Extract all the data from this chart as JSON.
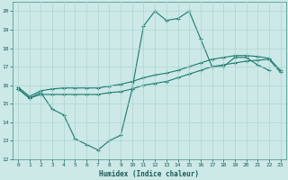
{
  "xlabel": "Humidex (Indice chaleur)",
  "bg_color": "#cce9e7",
  "grid_color": "#aed4d1",
  "line_color": "#1a7a6e",
  "xlim": [
    -0.5,
    23.5
  ],
  "ylim": [
    12,
    20.5
  ],
  "yticks": [
    12,
    13,
    14,
    15,
    16,
    17,
    18,
    19,
    20
  ],
  "xticks": [
    0,
    1,
    2,
    3,
    4,
    5,
    6,
    7,
    8,
    9,
    10,
    11,
    12,
    13,
    14,
    15,
    16,
    17,
    18,
    19,
    20,
    21,
    22,
    23
  ],
  "line1_x": [
    0,
    1,
    2,
    3,
    4,
    5,
    6,
    7,
    8,
    9,
    10,
    11,
    12,
    13,
    14,
    15,
    16,
    17,
    18,
    19,
    20,
    21,
    22
  ],
  "line1_y": [
    15.8,
    15.3,
    15.6,
    14.7,
    14.4,
    13.1,
    12.8,
    12.5,
    13.0,
    13.3,
    15.8,
    19.2,
    20.0,
    19.5,
    19.6,
    20.0,
    18.5,
    17.0,
    17.0,
    17.5,
    17.5,
    17.1,
    16.8
  ],
  "line2_x": [
    0,
    1,
    2,
    3,
    4,
    5,
    6,
    7,
    8,
    9,
    10,
    11,
    12,
    13,
    14,
    15,
    16,
    17,
    18,
    19,
    20,
    21,
    22,
    23
  ],
  "line2_y": [
    15.8,
    15.3,
    15.5,
    15.5,
    15.5,
    15.5,
    15.5,
    15.5,
    15.6,
    15.65,
    15.8,
    16.0,
    16.1,
    16.2,
    16.4,
    16.6,
    16.8,
    17.0,
    17.1,
    17.2,
    17.3,
    17.35,
    17.4,
    16.7
  ],
  "line3_x": [
    0,
    1,
    2,
    3,
    4,
    5,
    6,
    7,
    8,
    9,
    10,
    11,
    12,
    13,
    14,
    15,
    16,
    17,
    18,
    19,
    20,
    21,
    22,
    23
  ],
  "line3_y": [
    15.9,
    15.4,
    15.7,
    15.8,
    15.85,
    15.85,
    15.85,
    15.85,
    15.95,
    16.05,
    16.2,
    16.4,
    16.55,
    16.65,
    16.8,
    17.0,
    17.2,
    17.4,
    17.5,
    17.6,
    17.6,
    17.55,
    17.45,
    16.8
  ]
}
